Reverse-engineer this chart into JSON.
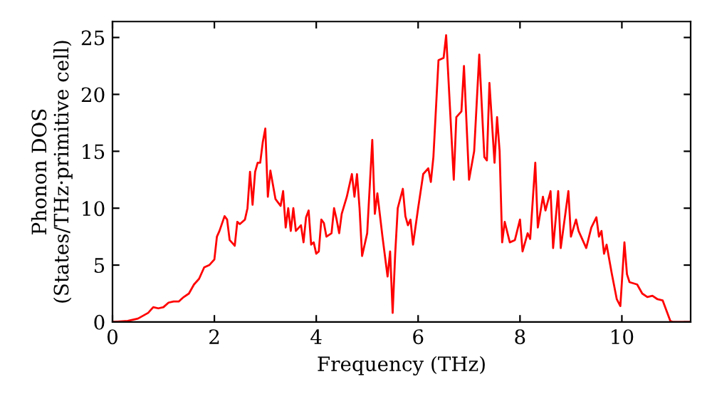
{
  "chart_data": {
    "type": "line",
    "xlabel": "Frequency (THz)",
    "ylabel": "Phonon DOS\n(States/THz·primitive cell)",
    "xlim": [
      0,
      11.35
    ],
    "ylim": [
      0,
      26.4
    ],
    "xticks": [
      0,
      2,
      4,
      6,
      8,
      10
    ],
    "yticks": [
      0,
      5,
      10,
      15,
      20,
      25
    ],
    "grid": false,
    "legend": false,
    "marker": "none",
    "line_style": "solid",
    "series": [
      {
        "color": "#ff0000",
        "x": [
          0,
          0.3,
          0.5,
          0.7,
          0.8,
          0.9,
          1.0,
          1.1,
          1.2,
          1.3,
          1.4,
          1.5,
          1.6,
          1.7,
          1.8,
          1.9,
          2.0,
          2.05,
          2.1,
          2.2,
          2.25,
          2.3,
          2.4,
          2.45,
          2.5,
          2.6,
          2.65,
          2.7,
          2.75,
          2.8,
          2.85,
          2.9,
          2.95,
          3.0,
          3.05,
          3.1,
          3.2,
          3.3,
          3.35,
          3.4,
          3.45,
          3.5,
          3.55,
          3.6,
          3.7,
          3.75,
          3.8,
          3.85,
          3.9,
          3.95,
          4.0,
          4.05,
          4.1,
          4.15,
          4.2,
          4.3,
          4.35,
          4.4,
          4.45,
          4.5,
          4.6,
          4.7,
          4.75,
          4.8,
          4.85,
          4.9,
          5.0,
          5.1,
          5.15,
          5.2,
          5.3,
          5.4,
          5.45,
          5.5,
          5.55,
          5.6,
          5.7,
          5.75,
          5.8,
          5.85,
          5.9,
          6.0,
          6.1,
          6.2,
          6.25,
          6.3,
          6.4,
          6.5,
          6.55,
          6.7,
          6.75,
          6.85,
          6.9,
          7.0,
          7.1,
          7.2,
          7.3,
          7.35,
          7.4,
          7.5,
          7.55,
          7.6,
          7.65,
          7.7,
          7.8,
          7.9,
          8.0,
          8.05,
          8.15,
          8.2,
          8.3,
          8.35,
          8.45,
          8.5,
          8.6,
          8.65,
          8.75,
          8.8,
          8.95,
          9.0,
          9.1,
          9.15,
          9.2,
          9.3,
          9.4,
          9.5,
          9.55,
          9.6,
          9.65,
          9.7,
          9.8,
          9.9,
          9.97,
          10.05,
          10.1,
          10.15,
          10.3,
          10.4,
          10.5,
          10.6,
          10.7,
          10.8,
          10.95,
          11.0,
          11.35
        ],
        "values": [
          0,
          0.1,
          0.3,
          0.8,
          1.3,
          1.2,
          1.3,
          1.7,
          1.8,
          1.8,
          2.2,
          2.5,
          3.3,
          3.8,
          4.8,
          5.0,
          5.5,
          7.5,
          8.0,
          9.3,
          9.0,
          7.2,
          6.7,
          8.8,
          8.6,
          9.0,
          10.0,
          13.2,
          10.3,
          13.2,
          14.0,
          14.0,
          15.8,
          17.0,
          11.0,
          13.3,
          10.8,
          10.2,
          11.5,
          8.3,
          10.0,
          8.0,
          10.0,
          8.0,
          8.5,
          7.0,
          9.2,
          9.8,
          6.8,
          7.0,
          6.0,
          6.2,
          9.0,
          8.7,
          7.5,
          7.8,
          10.0,
          9.0,
          7.8,
          9.5,
          11.0,
          13.0,
          11.0,
          13.0,
          10.0,
          5.8,
          7.8,
          16.0,
          9.5,
          11.3,
          7.5,
          4.0,
          6.2,
          0.8,
          6.0,
          10.0,
          11.7,
          9.3,
          8.5,
          9.0,
          6.8,
          10.0,
          13.0,
          13.5,
          12.3,
          14.5,
          23.0,
          23.2,
          25.2,
          12.5,
          18.0,
          18.5,
          22.5,
          12.5,
          15.0,
          23.5,
          14.5,
          14.2,
          21.0,
          14.0,
          18.0,
          15.0,
          7.0,
          8.8,
          7.0,
          7.2,
          9.0,
          6.2,
          7.8,
          7.3,
          14.0,
          8.3,
          11.0,
          9.8,
          11.5,
          6.5,
          11.5,
          6.5,
          11.5,
          7.5,
          9.0,
          8.0,
          7.5,
          6.5,
          8.3,
          9.2,
          7.5,
          8.0,
          6.0,
          6.8,
          4.3,
          2.0,
          1.4,
          7.0,
          4.2,
          3.5,
          3.3,
          2.5,
          2.2,
          2.3,
          2.0,
          1.9,
          0.1,
          0,
          0
        ]
      }
    ]
  }
}
